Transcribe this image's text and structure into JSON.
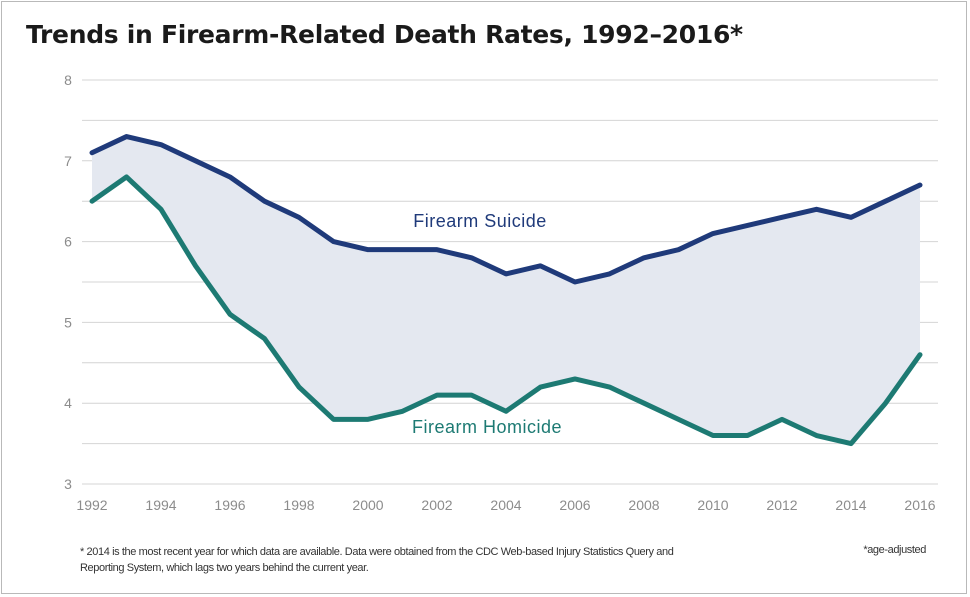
{
  "chart_data": {
    "type": "line",
    "title": "Trends in Firearm-Related Death Rates, 1992–2016*",
    "x": [
      1992,
      1993,
      1994,
      1995,
      1996,
      1997,
      1998,
      1999,
      2000,
      2001,
      2002,
      2003,
      2004,
      2005,
      2006,
      2007,
      2008,
      2009,
      2010,
      2011,
      2012,
      2013,
      2014,
      2015,
      2016
    ],
    "x_ticks": [
      "1992",
      "1994",
      "1996",
      "1998",
      "2000",
      "2002",
      "2004",
      "2006",
      "2008",
      "2010",
      "2012",
      "2014",
      "2016"
    ],
    "y_ticks": [
      "3",
      "4",
      "5",
      "6",
      "7",
      "8"
    ],
    "xlim": [
      1992,
      2016
    ],
    "ylim": [
      3,
      8
    ],
    "grid": "horizontal",
    "series": [
      {
        "name": "Firearm Suicide",
        "color": "#1f3a7a",
        "values": [
          7.1,
          7.3,
          7.2,
          7.0,
          6.8,
          6.5,
          6.3,
          6.0,
          5.9,
          5.9,
          5.9,
          5.8,
          5.6,
          5.7,
          5.5,
          5.6,
          5.8,
          5.9,
          6.1,
          6.2,
          6.3,
          6.4,
          6.3,
          6.5,
          6.7
        ]
      },
      {
        "name": "Firearm Homicide",
        "color": "#1d7a73",
        "values": [
          6.5,
          6.8,
          6.4,
          5.7,
          5.1,
          4.8,
          4.2,
          3.8,
          3.8,
          3.9,
          4.1,
          4.1,
          3.9,
          4.2,
          4.3,
          4.2,
          4.0,
          3.8,
          3.6,
          3.6,
          3.8,
          3.6,
          3.5,
          4.0,
          4.6
        ]
      }
    ],
    "fill_between_color": "#e4e8f0",
    "footnote": "* 2014 is the most recent year for which data are available. Data were obtained from the CDC Web-based Injury Statistics Query and Reporting System, which lags two years behind the current year.",
    "note_right": "*age-adjusted"
  }
}
